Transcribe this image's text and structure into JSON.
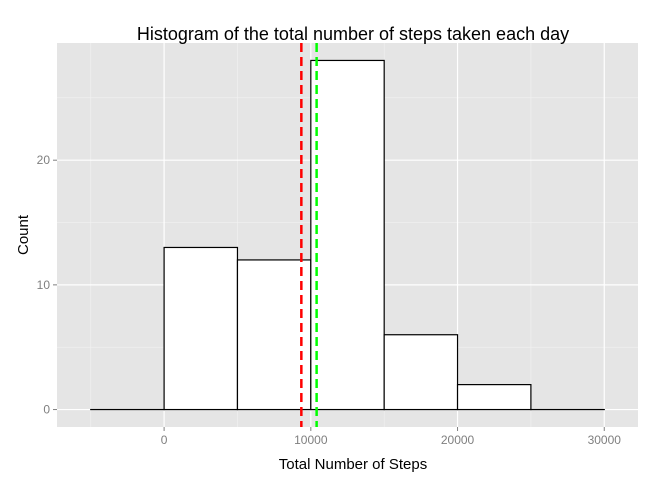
{
  "chart_data": {
    "type": "bar",
    "title": "Histogram of the total number of steps taken each day",
    "xlabel": "Total Number of Steps",
    "ylabel": "Count",
    "bin_width": 5000,
    "bins": [
      {
        "start": -5000,
        "end": 0,
        "count": 0
      },
      {
        "start": 0,
        "end": 5000,
        "count": 13
      },
      {
        "start": 5000,
        "end": 10000,
        "count": 12
      },
      {
        "start": 10000,
        "end": 15000,
        "count": 28
      },
      {
        "start": 15000,
        "end": 20000,
        "count": 6
      },
      {
        "start": 20000,
        "end": 25000,
        "count": 2
      },
      {
        "start": 25000,
        "end": 30000,
        "count": 0
      }
    ],
    "xlim": [
      -7300,
      32300
    ],
    "ylim": [
      -1.4,
      29.4
    ],
    "x_ticks": [
      0,
      10000,
      20000,
      30000
    ],
    "x_tick_labels": [
      "0",
      "10000",
      "20000",
      "30000"
    ],
    "y_ticks": [
      0,
      10,
      20
    ],
    "y_tick_labels": [
      "0",
      "10",
      "20"
    ],
    "reference_lines": [
      {
        "value": 9354,
        "color": "#ff0000",
        "style": "dashed"
      },
      {
        "value": 10395,
        "color": "#00ff00",
        "style": "dashed"
      }
    ],
    "grid": true,
    "colors": {
      "panel_background": "#e5e5e5",
      "grid": "#ffffff",
      "bar_fill": "#ffffff",
      "bar_stroke": "#000000",
      "tick_text": "#7f7f7f",
      "title_text": "#000000"
    }
  }
}
